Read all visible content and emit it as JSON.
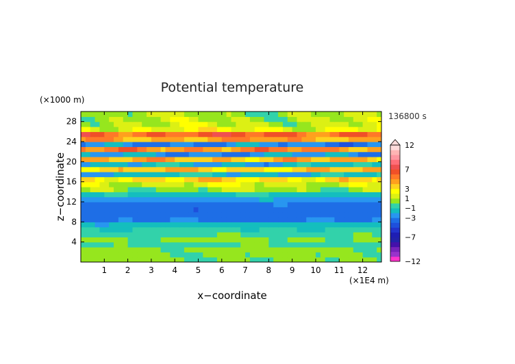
{
  "chart_data": {
    "type": "heatmap",
    "title": "Potential temperature",
    "xlabel": "x−coordinate",
    "ylabel": "z−coordinate",
    "x_unit": "(×1E4 m)",
    "y_unit": "(×1000 m)",
    "time_label": "136800 s",
    "xlim": [
      0,
      12.8
    ],
    "ylim": [
      0,
      30
    ],
    "x_ticks": [
      "1",
      "2",
      "3",
      "4",
      "5",
      "6",
      "7",
      "8",
      "9",
      "10",
      "11",
      "12"
    ],
    "y_ticks": [
      "4",
      "8",
      "12",
      "16",
      "20",
      "24",
      "28"
    ],
    "colorbar": {
      "labels": [
        "12",
        "7",
        "3",
        "1",
        "−1",
        "−3",
        "−7",
        "−12"
      ],
      "label_values": [
        12,
        7,
        3,
        1,
        -1,
        -3,
        -7,
        -12
      ],
      "levels": [
        -12,
        -11,
        -10,
        -9,
        -8,
        -7,
        -6,
        -5,
        -4,
        -3,
        -2,
        -1,
        0,
        1,
        2,
        3,
        4,
        5,
        6,
        7,
        8,
        9,
        10,
        11,
        12
      ],
      "colors": [
        "#ff33cc",
        "#9933cc",
        "#7722bb",
        "#4411aa",
        "#2222aa",
        "#1e1eb4",
        "#2233cc",
        "#1e50dc",
        "#1e6ee6",
        "#2896f0",
        "#14bebe",
        "#32d2aa",
        "#96e61e",
        "#dcf014",
        "#ffff00",
        "#ffd21e",
        "#ffa01e",
        "#ff7828",
        "#f05028",
        "#f05050",
        "#ff6e78",
        "#ff96a0",
        "#ffb4b4",
        "#ffdcdc"
      ]
    },
    "bands": [
      {
        "z": 0,
        "value": 0.1
      },
      {
        "z": 1,
        "value": 0.2
      },
      {
        "z": 2,
        "value": 0.3
      },
      {
        "z": 3,
        "value": -0.2
      },
      {
        "z": 4,
        "value": 0.2
      },
      {
        "z": 5,
        "value": -0.3
      },
      {
        "z": 6,
        "value": -0.8
      },
      {
        "z": 7,
        "value": -1.6
      },
      {
        "z": 8,
        "value": -3.2
      },
      {
        "z": 9,
        "value": -3.5
      },
      {
        "z": 10,
        "value": -3.6
      },
      {
        "z": 11,
        "value": -3.4
      },
      {
        "z": 12,
        "value": -2.4
      },
      {
        "z": 13,
        "value": -1.2
      },
      {
        "z": 14,
        "value": 0.6
      },
      {
        "z": 15,
        "value": 1.5
      },
      {
        "z": 16,
        "value": 3.2
      },
      {
        "z": 17,
        "value": -1.5
      },
      {
        "z": 18,
        "value": 3.5
      },
      {
        "z": 19,
        "value": -1.8
      },
      {
        "z": 20,
        "value": 4.0
      },
      {
        "z": 21,
        "value": -2.5
      },
      {
        "z": 22,
        "value": 5.0
      },
      {
        "z": 23,
        "value": -2.8
      },
      {
        "z": 24,
        "value": 4.5
      },
      {
        "z": 25,
        "value": 6.0
      },
      {
        "z": 26,
        "value": 2.0
      },
      {
        "z": 27,
        "value": 1.2
      },
      {
        "z": 28,
        "value": 0.9
      },
      {
        "z": 29,
        "value": 0.6
      }
    ]
  }
}
